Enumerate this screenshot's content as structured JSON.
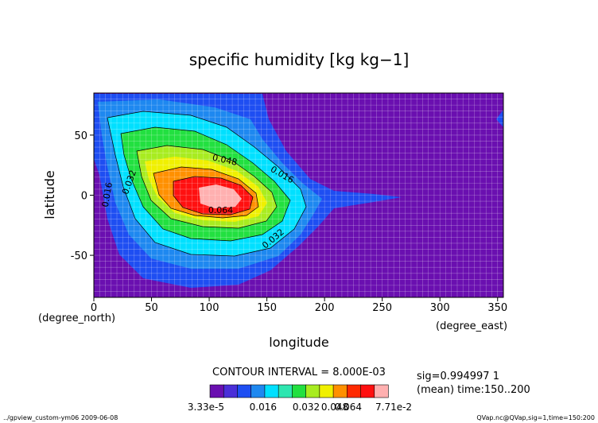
{
  "chart_data": {
    "type": "heatmap",
    "title": "specific humidity [kg kg−1]",
    "xlabel": "longitude",
    "ylabel": "latitude",
    "x_unit": "(degree_east)",
    "y_unit": "(degree_north)",
    "xlim": [
      0,
      355
    ],
    "ylim": [
      -85,
      85
    ],
    "x_ticks": [
      0,
      50,
      100,
      150,
      200,
      250,
      300,
      350
    ],
    "y_ticks": [
      50,
      0,
      -50
    ],
    "contour_labels": [
      {
        "text": "0.016",
        "x": 14,
        "y": 0
      },
      {
        "text": "0.032",
        "x": 33,
        "y": 10
      },
      {
        "text": "0.048",
        "x": 113,
        "y": 27
      },
      {
        "text": "0.016",
        "x": 162,
        "y": 15
      },
      {
        "text": "0.064",
        "x": 110,
        "y": -15
      },
      {
        "text": "0.032",
        "x": 157,
        "y": -38
      }
    ],
    "contour_interval_text": "CONTOUR INTERVAL = 8.000E-03",
    "info_lines": [
      "sig=0.994997 1",
      "(mean) time:150..200"
    ],
    "colorbar": {
      "colors": [
        "#6a0fb0",
        "#4a2fd8",
        "#1e4ef2",
        "#1e88f0",
        "#00e0ff",
        "#2ee6b0",
        "#22e040",
        "#a8ec20",
        "#f0f000",
        "#ff9000",
        "#ff2a00",
        "#ff1010",
        "#ffb0b0"
      ],
      "tick_labels": [
        "3.33e-5",
        "0.016",
        "0.032",
        "0.048",
        "0.064",
        "7.71e-2"
      ]
    },
    "footer_left": "../gpview_custom-ym06  2009-06-08",
    "footer_right": "QVap.nc@QVap,sig=1,time=150:200"
  }
}
